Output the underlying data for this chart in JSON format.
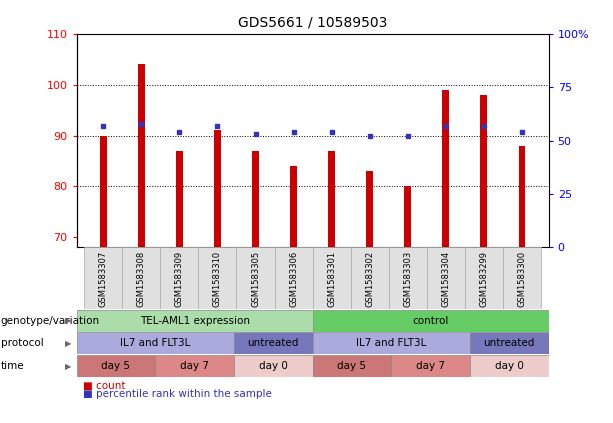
{
  "title": "GDS5661 / 10589503",
  "samples": [
    "GSM1583307",
    "GSM1583308",
    "GSM1583309",
    "GSM1583310",
    "GSM1583305",
    "GSM1583306",
    "GSM1583301",
    "GSM1583302",
    "GSM1583303",
    "GSM1583304",
    "GSM1583299",
    "GSM1583300"
  ],
  "bar_values": [
    90,
    104,
    87,
    91,
    87,
    84,
    87,
    83,
    80,
    99,
    98,
    88
  ],
  "dot_values": [
    57,
    58,
    54,
    57,
    53,
    54,
    54,
    52,
    52,
    57,
    57,
    54
  ],
  "ylim_left": [
    68,
    110
  ],
  "ylim_right": [
    0,
    100
  ],
  "yticks_left": [
    70,
    80,
    90,
    100,
    110
  ],
  "yticks_right": [
    0,
    25,
    50,
    75,
    100
  ],
  "bar_color": "#cc0000",
  "dot_color": "#3333bb",
  "bg_color": "#ffffff",
  "row_labels": [
    "genotype/variation",
    "protocol",
    "time"
  ],
  "genotype_groups": [
    {
      "label": "TEL-AML1 expression",
      "start": 0,
      "end": 6,
      "color": "#aaddaa"
    },
    {
      "label": "control",
      "start": 6,
      "end": 12,
      "color": "#66cc66"
    }
  ],
  "protocol_groups": [
    {
      "label": "IL7 and FLT3L",
      "start": 0,
      "end": 4,
      "color": "#aaaadd"
    },
    {
      "label": "untreated",
      "start": 4,
      "end": 6,
      "color": "#7777bb"
    },
    {
      "label": "IL7 and FLT3L",
      "start": 6,
      "end": 10,
      "color": "#aaaadd"
    },
    {
      "label": "untreated",
      "start": 10,
      "end": 12,
      "color": "#7777bb"
    }
  ],
  "time_groups": [
    {
      "label": "day 5",
      "start": 0,
      "end": 2,
      "color": "#cc7777"
    },
    {
      "label": "day 7",
      "start": 2,
      "end": 4,
      "color": "#dd8888"
    },
    {
      "label": "day 0",
      "start": 4,
      "end": 6,
      "color": "#eecccc"
    },
    {
      "label": "day 5",
      "start": 6,
      "end": 8,
      "color": "#cc7777"
    },
    {
      "label": "day 7",
      "start": 8,
      "end": 10,
      "color": "#dd8888"
    },
    {
      "label": "day 0",
      "start": 10,
      "end": 12,
      "color": "#eecccc"
    }
  ],
  "legend_items": [
    {
      "label": "count",
      "color": "#cc0000"
    },
    {
      "label": "percentile rank within the sample",
      "color": "#3333bb"
    }
  ]
}
